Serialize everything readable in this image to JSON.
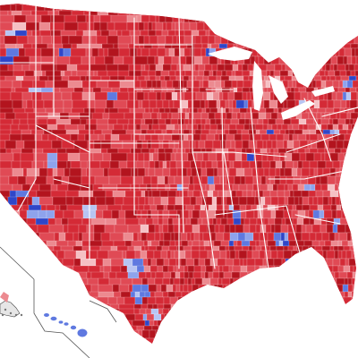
{
  "map": {
    "palette": {
      "rep_strong": "#b3141e",
      "rep": "#d42a36",
      "rep_mid": "#e04a55",
      "rep_light": "#ec8a90",
      "rep_pale": "#f5c0c4",
      "dem_pale": "#b7c4f2",
      "dem_light": "#8ea3ec",
      "dem": "#5f79e0",
      "dem_strong": "#2f46c8",
      "state_border": "#ffffff",
      "water": "#ffffff",
      "inset_frame": "#555555"
    },
    "regions": [
      "contiguous-us",
      "alaska-inset",
      "hawaii-inset"
    ],
    "icons": {
      "map": "us-county-map-icon"
    }
  }
}
